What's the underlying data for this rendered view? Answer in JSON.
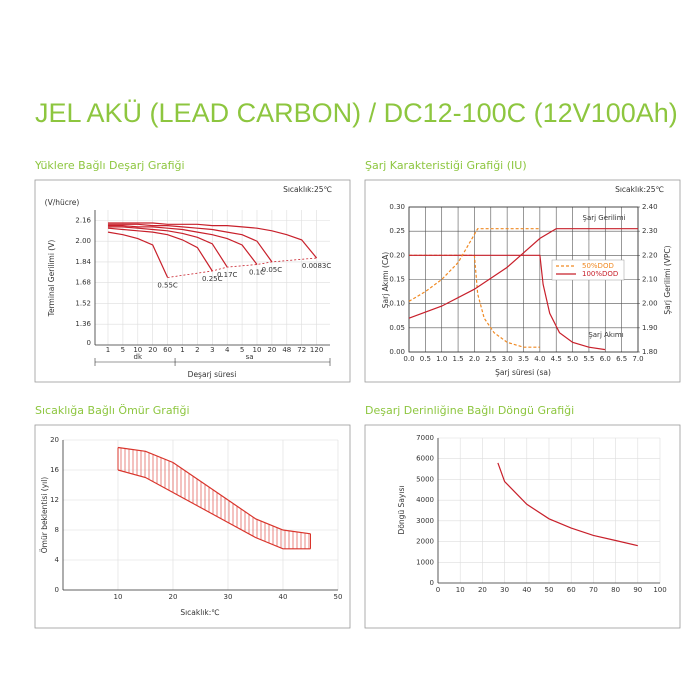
{
  "title": "JEL AKÜ (LEAD CARBON) / DC12-100C (12V100Ah)",
  "chart_data": [
    {
      "type": "line",
      "title": "Yüklere Bağlı Deşarj Grafiği",
      "annotation": "Sıcaklık:25℃",
      "y_unit": "(V/hücre)",
      "ylabel": "Terminal Gerilimi (V)",
      "xlabel": "Deşarj süresi",
      "y_origin_label": "0",
      "categories": [
        "1",
        "5",
        "10",
        "20",
        "60",
        "1",
        "2",
        "3",
        "4",
        "5",
        "10",
        "20",
        "48",
        "72",
        "120"
      ],
      "x_groups": [
        {
          "label": "dk",
          "count": 5
        },
        {
          "label": "sa",
          "count": 10
        }
      ],
      "ylim": [
        1.2,
        2.24
      ],
      "yticks": [
        1.36,
        1.52,
        1.68,
        1.84,
        {
          "value": 2,
          "label": "2.00"
        },
        2.16
      ],
      "grid": true,
      "series": [
        {
          "name": "0.55C",
          "color": "#c8202b",
          "values": [
            2.07,
            2.05,
            2.02,
            1.97,
            1.72,
            null,
            null,
            null,
            null,
            null,
            null,
            null,
            null,
            null,
            null
          ]
        },
        {
          "name": "0.25C",
          "color": "#c8202b",
          "values": [
            2.1,
            2.09,
            2.08,
            2.07,
            2.05,
            2.01,
            1.95,
            1.77,
            null,
            null,
            null,
            null,
            null,
            null,
            null
          ]
        },
        {
          "name": "0.17C",
          "color": "#c8202b",
          "values": [
            2.11,
            2.11,
            2.1,
            2.09,
            2.08,
            2.06,
            2.03,
            1.98,
            1.8,
            null,
            null,
            null,
            null,
            null,
            null
          ]
        },
        {
          "name": "0.1C",
          "color": "#c8202b",
          "values": [
            2.12,
            2.12,
            2.11,
            2.11,
            2.1,
            2.09,
            2.07,
            2.05,
            2.02,
            1.97,
            1.82,
            null,
            null,
            null,
            null
          ]
        },
        {
          "name": "0.05C",
          "color": "#c8202b",
          "values": [
            2.13,
            2.13,
            2.13,
            2.12,
            2.12,
            2.11,
            2.1,
            2.09,
            2.07,
            2.05,
            2.0,
            1.84,
            null,
            null,
            null
          ]
        },
        {
          "name": "0.0083C",
          "color": "#c8202b",
          "values": [
            2.14,
            2.14,
            2.14,
            2.14,
            2.13,
            2.13,
            2.13,
            2.12,
            2.12,
            2.11,
            2.1,
            2.08,
            2.05,
            2.01,
            1.87
          ]
        }
      ]
    },
    {
      "type": "line",
      "title": "Şarj Karakteristiği Grafiği (IU)",
      "annotation": "Sıcaklık:25℃",
      "ylabel": "Şarj Akımı (CA)",
      "y2label": "Şarj Gerilimi (VPC)",
      "xlabel": "Şarj süresi (sa)",
      "annotations": [
        "Şarj Gerilimi",
        "Şarj Akımı"
      ],
      "xlim": [
        0,
        7
      ],
      "xticks": [
        {
          "value": 0,
          "label": "0.0"
        },
        0.5,
        {
          "value": 1,
          "label": "1.0"
        },
        1.5,
        {
          "value": 2,
          "label": "2.0"
        },
        2.5,
        {
          "value": 3,
          "label": "3.0"
        },
        3.5,
        {
          "value": 4,
          "label": "4.0"
        },
        4.5,
        {
          "value": 5,
          "label": "5.0"
        },
        5.5,
        {
          "value": 6,
          "label": "6.0"
        },
        6.5,
        {
          "value": 7,
          "label": "7.0"
        }
      ],
      "ylim": [
        0,
        0.3
      ],
      "yticks": [
        {
          "value": 0,
          "label": "0.00"
        },
        0.05,
        {
          "value": 0.1,
          "label": "0.10"
        },
        0.15,
        {
          "value": 0.2,
          "label": "0.20"
        },
        0.25,
        {
          "value": 0.3,
          "label": "0.30"
        }
      ],
      "y2lim": [
        1.8,
        2.4
      ],
      "y2ticks": [
        {
          "value": 1.8,
          "label": "1.80"
        },
        {
          "value": 1.9,
          "label": "1.90"
        },
        {
          "value": 2,
          "label": "2.00"
        },
        {
          "value": 2.1,
          "label": "2.10"
        },
        {
          "value": 2.2,
          "label": "2.20"
        },
        {
          "value": 2.3,
          "label": "2.30"
        },
        {
          "value": 2.4,
          "label": "2.40"
        }
      ],
      "grid": true,
      "legend": "right",
      "series": [
        {
          "name": "50%DOD",
          "color": "#f08a24",
          "dashed": true,
          "x": [
            0,
            2.0,
            2.1,
            2.3,
            2.6,
            3.0,
            3.5,
            4.0
          ],
          "values": [
            0.2,
            0.2,
            0.12,
            0.07,
            0.04,
            0.02,
            0.01,
            0.01
          ]
        },
        {
          "name": "100%DOD",
          "color": "#c8202b",
          "x": [
            0,
            4.0,
            4.1,
            4.3,
            4.6,
            5.0,
            5.5,
            6.0
          ],
          "values": [
            0.2,
            0.2,
            0.14,
            0.08,
            0.04,
            0.02,
            0.01,
            0.005
          ]
        },
        {
          "color": "#f08a24",
          "dashed": true,
          "axis": "y2",
          "x": [
            0,
            0.5,
            1.0,
            1.5,
            1.8,
            2.1,
            4.0
          ],
          "values": [
            2.01,
            2.05,
            2.1,
            2.17,
            2.24,
            2.31,
            2.31
          ]
        },
        {
          "color": "#c8202b",
          "axis": "y2",
          "x": [
            0,
            1,
            2,
            3,
            4,
            4.5,
            7
          ],
          "values": [
            1.94,
            1.99,
            2.06,
            2.15,
            2.27,
            2.31,
            2.31
          ]
        }
      ]
    },
    {
      "type": "range_area",
      "title": "Sıcaklığa Bağlı Ömür Grafiği",
      "ylabel": "Ömür beklentisi (yıl)",
      "xlabel": "Sıcaklık:℃",
      "x": [
        10,
        15,
        20,
        25,
        30,
        35,
        40,
        45
      ],
      "xlim": [
        0,
        50
      ],
      "xticks": [
        10,
        20,
        30,
        40,
        50
      ],
      "ylim": [
        0,
        20
      ],
      "yticks": [
        0,
        4,
        8,
        12,
        16,
        20
      ],
      "grid": true,
      "series": [
        {
          "color": "#d9342b",
          "values": [
            19,
            18.5,
            17,
            14.5,
            12,
            9.5,
            8,
            7.5
          ]
        },
        {
          "color": "#d9342b",
          "values": [
            16,
            15,
            13,
            11,
            9,
            7,
            5.5,
            5.5
          ]
        }
      ]
    },
    {
      "type": "line",
      "title": "Deşarj Derinliğine Bağlı Döngü Grafiği",
      "ylabel": "Döngü Sayısı",
      "x": [
        27,
        30,
        40,
        50,
        60,
        70,
        80,
        90
      ],
      "xlim": [
        0,
        100
      ],
      "xticks": [
        0,
        10,
        20,
        30,
        40,
        50,
        60,
        70,
        80,
        90,
        100
      ],
      "ylim": [
        0,
        7000
      ],
      "yticks": [
        0,
        1000,
        2000,
        3000,
        4000,
        5000,
        6000,
        7000
      ],
      "grid": true,
      "series": [
        {
          "color": "#c8202b",
          "values": [
            5800,
            4900,
            3800,
            3100,
            2650,
            2300,
            2050,
            1800
          ]
        }
      ]
    }
  ]
}
